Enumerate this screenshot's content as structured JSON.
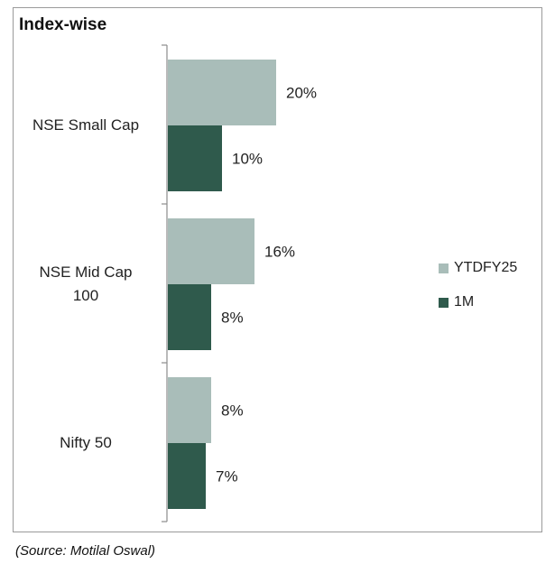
{
  "chart_data": {
    "type": "bar",
    "orientation": "horizontal",
    "title": "Index-wise",
    "categories": [
      "NSE Small Cap",
      "NSE Mid Cap 100",
      "Nifty 50"
    ],
    "category_lines": [
      [
        "NSE Small Cap"
      ],
      [
        "NSE Mid Cap",
        "100"
      ],
      [
        "Nifty 50"
      ]
    ],
    "series": [
      {
        "name": "YTDFY25",
        "values": [
          20,
          16,
          8
        ],
        "labels": [
          "20%",
          "16%",
          "8%"
        ],
        "color": "#a9bdb9"
      },
      {
        "name": "1M",
        "values": [
          10,
          8,
          7
        ],
        "labels": [
          "10%",
          "8%",
          "7%"
        ],
        "color": "#2f5a4c"
      }
    ],
    "xlim": [
      0,
      20
    ],
    "value_suffix": "%",
    "legend_position": "right",
    "grid": false
  },
  "source_text": "(Source: Motilal Oswal)"
}
